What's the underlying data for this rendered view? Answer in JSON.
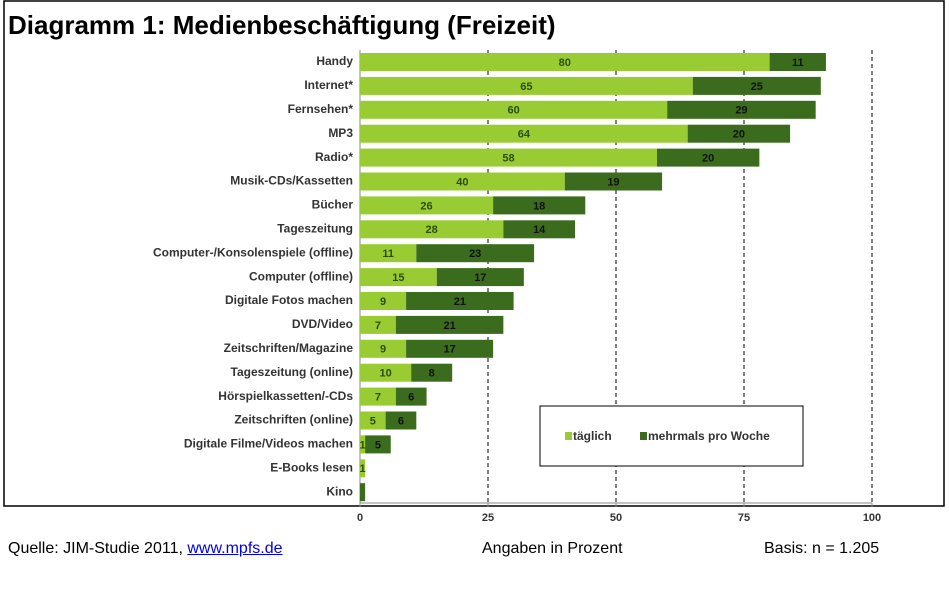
{
  "chart_data": {
    "type": "stacked_bar_horizontal",
    "title": "Diagramm 1: Medienbeschäftigung (Freizeit)",
    "categories": [
      "Handy",
      "Internet*",
      "Fernsehen*",
      "MP3",
      "Radio*",
      "Musik-CDs/Kassetten",
      "Bücher",
      "Tageszeitung",
      "Computer-/Konsolenspiele (offline)",
      "Computer (offline)",
      "Digitale Fotos machen",
      "DVD/Video",
      "Zeitschriften/Magazine",
      "Tageszeitung (online)",
      "Hörspielkassetten/-CDs",
      "Zeitschriften (online)",
      "Digitale Filme/Videos machen",
      "E-Books lesen",
      "Kino"
    ],
    "series": [
      {
        "name": "täglich",
        "color": "#99cc33",
        "values": [
          80,
          65,
          60,
          64,
          58,
          40,
          26,
          28,
          11,
          15,
          9,
          7,
          9,
          10,
          7,
          5,
          1,
          1,
          0
        ],
        "value_labels": [
          "80",
          "65",
          "60",
          "64",
          "58",
          "40",
          "26",
          "28",
          "11",
          "15",
          "9",
          "7",
          "9",
          "10",
          "7",
          "5",
          "1",
          "1",
          null
        ]
      },
      {
        "name": "mehrmals pro Woche",
        "color": "#3b6b1c",
        "values": [
          11,
          25,
          29,
          20,
          20,
          19,
          18,
          14,
          23,
          17,
          21,
          21,
          17,
          8,
          6,
          6,
          5,
          0,
          1
        ],
        "value_labels": [
          "11",
          "25",
          "29",
          "20",
          "20",
          "19",
          "18",
          "14",
          "23",
          "17",
          "21",
          "21",
          "17",
          "8",
          "6",
          "6",
          "5",
          null,
          null
        ]
      }
    ],
    "xlim": [
      0,
      100
    ],
    "xticks": [
      0,
      25,
      50,
      75,
      100
    ],
    "grid": true,
    "legend": "lower right"
  },
  "footer": {
    "source": "Quelle: JIM-Studie 2011,",
    "link": "www.mpfs.de",
    "unit": "Angaben in Prozent",
    "basis": "Basis: n = 1.205"
  }
}
